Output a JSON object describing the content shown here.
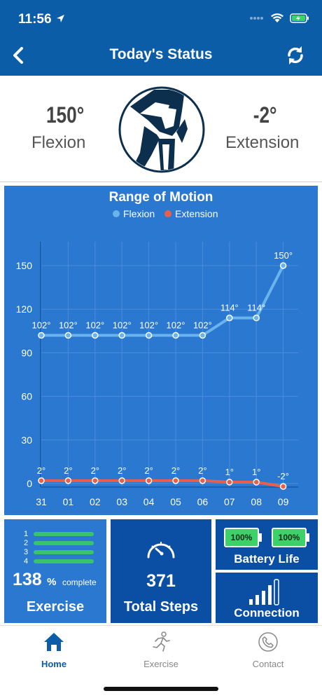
{
  "status_bar": {
    "time": "11:56"
  },
  "nav": {
    "title": "Today's Status"
  },
  "summary": {
    "flexion_value": "150°",
    "flexion_label": "Flexion",
    "extension_value": "-2°",
    "extension_label": "Extension"
  },
  "colors": {
    "primary": "#0c5da8",
    "panel": "#2a78d0",
    "flexion": "#6ab4ee",
    "extension": "#e8604c",
    "battery_fill": "#3dd16a",
    "progress_bar": "#39c36b"
  },
  "chart_data": {
    "type": "line",
    "title": "Range of Motion",
    "categories": [
      "31",
      "01",
      "02",
      "03",
      "04",
      "05",
      "06",
      "07",
      "08",
      "09"
    ],
    "yticks": [
      "150",
      "120",
      "90",
      "60",
      "30",
      "0",
      "-30"
    ],
    "ylim": [
      -30,
      150
    ],
    "grid": true,
    "legend_position": "top-center",
    "series": [
      {
        "name": "Flexion",
        "color": "#6ab4ee",
        "values": [
          102,
          102,
          102,
          102,
          102,
          102,
          102,
          114,
          114,
          150
        ],
        "labels": [
          "102°",
          "102°",
          "102°",
          "102°",
          "102°",
          "102°",
          "102°",
          "114°",
          "114°",
          "150°"
        ]
      },
      {
        "name": "Extension",
        "color": "#e8604c",
        "values": [
          2,
          2,
          2,
          2,
          2,
          2,
          2,
          1,
          1,
          -2
        ],
        "labels": [
          "2°",
          "2°",
          "2°",
          "2°",
          "2°",
          "2°",
          "2°",
          "1°",
          "1°",
          "-2°"
        ]
      }
    ]
  },
  "exercise_tile": {
    "list_numbers": [
      "1",
      "2",
      "3",
      "4"
    ],
    "percent": "138",
    "percent_sign": "%",
    "complete_text": "complete",
    "label": "Exercise"
  },
  "steps_tile": {
    "value": "371",
    "label": "Total Steps"
  },
  "battery_tile": {
    "left": "100%",
    "right": "100%",
    "label": "Battery Life"
  },
  "connection_tile": {
    "label": "Connection"
  },
  "tabs": [
    {
      "label": "Home",
      "icon": "home-icon",
      "active": true
    },
    {
      "label": "Exercise",
      "icon": "runner-icon",
      "active": false
    },
    {
      "label": "Contact",
      "icon": "phone-icon",
      "active": false
    }
  ]
}
